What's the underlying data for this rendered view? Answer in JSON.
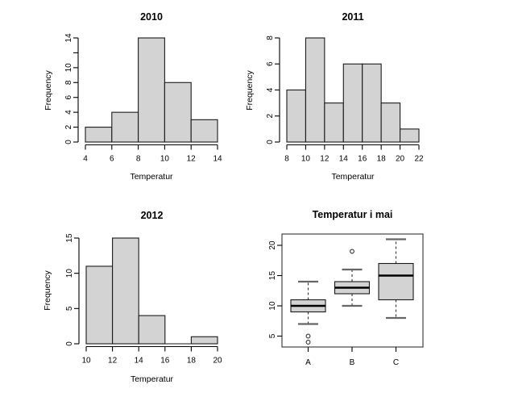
{
  "figure": {
    "background": "#ffffff",
    "text_color": "#000000"
  },
  "chart_data": [
    {
      "id": "hist-2010",
      "type": "bar",
      "subtype": "histogram",
      "title": "2010",
      "xlabel": "Temperatur",
      "ylabel": "Frequency",
      "breaks": [
        4,
        6,
        8,
        10,
        12,
        14
      ],
      "counts": [
        2,
        4,
        14,
        8,
        3
      ],
      "xlim": [
        4,
        14
      ],
      "ylim": [
        0,
        14
      ],
      "xticks": [
        4,
        6,
        8,
        10,
        12,
        14
      ],
      "yticks": [
        0,
        2,
        4,
        6,
        8,
        10,
        12,
        14
      ],
      "ytick_labels": [
        "0",
        "2",
        "4",
        "6",
        "8",
        "10",
        "",
        "14"
      ],
      "bar_fill": "#d3d3d3",
      "bar_stroke": "#1a1a1a",
      "grid": "off",
      "legend": "none"
    },
    {
      "id": "hist-2011",
      "type": "bar",
      "subtype": "histogram",
      "title": "2011",
      "xlabel": "Temperatur",
      "ylabel": "Frequency",
      "breaks": [
        8,
        10,
        12,
        14,
        16,
        18,
        20,
        22
      ],
      "counts": [
        4,
        8,
        3,
        6,
        6,
        3,
        1
      ],
      "xlim": [
        8,
        22
      ],
      "ylim": [
        0,
        8
      ],
      "xticks": [
        8,
        10,
        12,
        14,
        16,
        18,
        20,
        22
      ],
      "yticks": [
        0,
        2,
        4,
        6,
        8
      ],
      "ytick_labels": [
        "0",
        "2",
        "4",
        "6",
        "8"
      ],
      "bar_fill": "#d3d3d3",
      "bar_stroke": "#1a1a1a",
      "grid": "off",
      "legend": "none"
    },
    {
      "id": "hist-2012",
      "type": "bar",
      "subtype": "histogram",
      "title": "2012",
      "xlabel": "Temperatur",
      "ylabel": "Frequency",
      "breaks": [
        10,
        12,
        14,
        16,
        18,
        20
      ],
      "counts": [
        11,
        15,
        4,
        0,
        1
      ],
      "xlim": [
        10,
        20
      ],
      "ylim": [
        0,
        15
      ],
      "xticks": [
        10,
        12,
        14,
        16,
        18,
        20
      ],
      "yticks": [
        0,
        5,
        10,
        15
      ],
      "ytick_labels": [
        "0",
        "5",
        "10",
        "15"
      ],
      "bar_fill": "#d3d3d3",
      "bar_stroke": "#1a1a1a",
      "grid": "off",
      "legend": "none"
    },
    {
      "id": "boxplot-temperatur-i-mai",
      "type": "boxplot",
      "title": "Temperatur i mai",
      "xlabel": "",
      "ylabel": "",
      "categories": [
        "A",
        "B",
        "C"
      ],
      "yticks": [
        5,
        10,
        15,
        20
      ],
      "ytick_labels": [
        "5",
        "10",
        "15",
        "20"
      ],
      "ylim": [
        3,
        22
      ],
      "series": [
        {
          "name": "A",
          "whisker_low": 7,
          "q1": 9,
          "median": 10,
          "q3": 11,
          "whisker_high": 14,
          "outliers": [
            5,
            4
          ]
        },
        {
          "name": "B",
          "whisker_low": 10,
          "q1": 12,
          "median": 13,
          "q3": 14,
          "whisker_high": 16,
          "outliers": [
            19
          ]
        },
        {
          "name": "C",
          "whisker_low": 8,
          "q1": 11,
          "median": 15,
          "q3": 17,
          "whisker_high": 21,
          "outliers": []
        }
      ],
      "box_fill": "#d3d3d3",
      "box_stroke": "#1a1a1a",
      "median_color": "#000000",
      "whisker_style": "dashed",
      "grid": "off",
      "legend": "none"
    }
  ]
}
